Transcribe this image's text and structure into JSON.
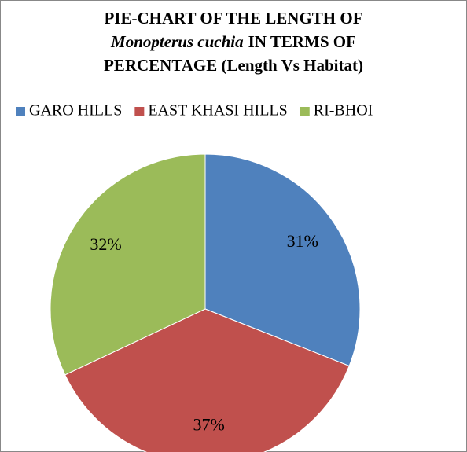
{
  "chart_data": {
    "type": "pie",
    "title": [
      "PIE-CHART OF THE LENGTH OF",
      "Monopterus cuchia",
      "IN TERMS OF",
      "PERCENTAGE (Length Vs Habitat)"
    ],
    "categories": [
      "GARO HILLS",
      "EAST KHASI HILLS",
      "RI-BHOI"
    ],
    "values": [
      31,
      37,
      32
    ],
    "value_labels": [
      "31%",
      "37%",
      "32%"
    ],
    "colors": [
      "#4f81bd",
      "#c0504d",
      "#9bbb59"
    ],
    "legend": "top"
  }
}
